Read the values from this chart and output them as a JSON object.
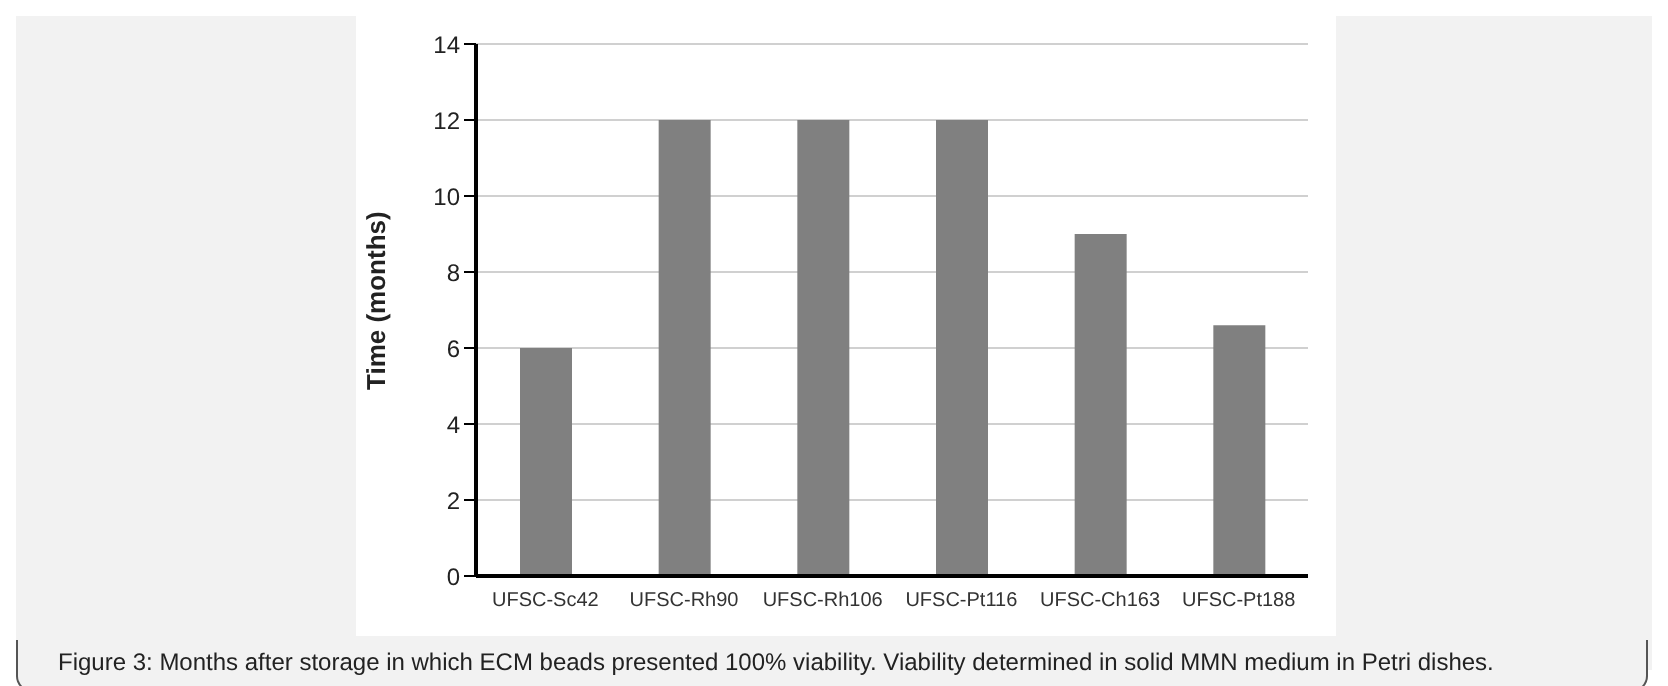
{
  "chart_data": {
    "type": "bar",
    "ylabel": "Time (months)",
    "categories": [
      "UFSC-Sc42",
      "UFSC-Rh90",
      "UFSC-Rh106",
      "UFSC-Pt116",
      "UFSC-Ch163",
      "UFSC-Pt188"
    ],
    "values": [
      6,
      12,
      12,
      12,
      9,
      6.6
    ],
    "color": "#808080",
    "ylim": [
      0,
      14
    ],
    "yticks": [
      0,
      2,
      4,
      6,
      8,
      10,
      12,
      14
    ],
    "grid": "y",
    "annotations": [
      "Figure 3: Months after storage in which ECM beads presented 100% viability. Viability determined in solid MMN medium in Petri dishes."
    ]
  }
}
